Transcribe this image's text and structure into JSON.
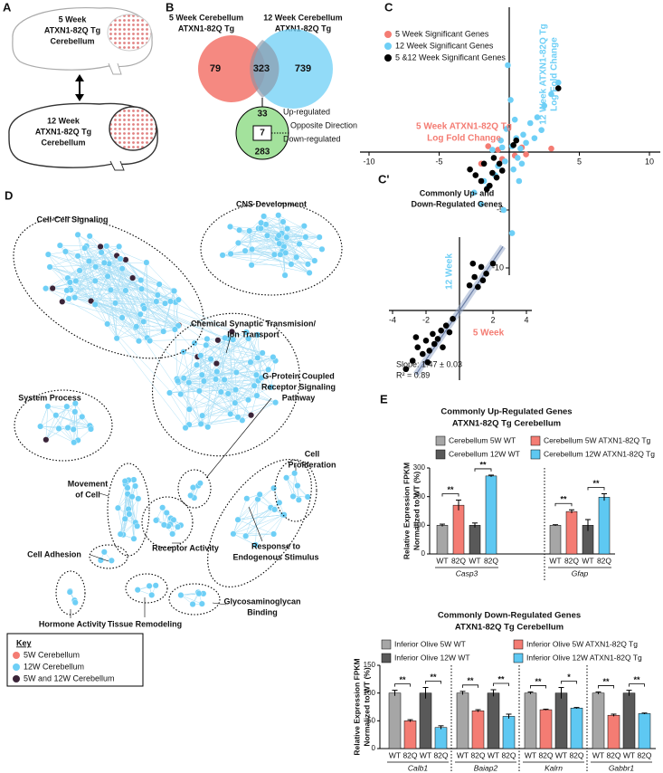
{
  "panel_a": {
    "label": "A",
    "top_brain": [
      "5 Week",
      "ATXN1-82Q Tg",
      "Cerebellum"
    ],
    "bottom_brain": [
      "12 Week",
      "ATXN1-82Q Tg",
      "Cerebellum"
    ]
  },
  "panel_b": {
    "label": "B",
    "left_set": [
      "5 Week Cerebellum",
      "ATXN1-82Q Tg"
    ],
    "right_set": [
      "12 Week Cerebellum",
      "ATXN1-82Q Tg"
    ],
    "left_only": 79,
    "overlap": 323,
    "right_only": 739,
    "overlap_split": {
      "up": 33,
      "opposite": 7,
      "down": 283
    },
    "split_labels": [
      "Up-regulated",
      "Opposite Direction",
      "Down-regulated"
    ]
  },
  "panel_d": {
    "label": "D",
    "clusters": [
      {
        "lines": [
          "Cell-Cell Signaling"
        ]
      },
      {
        "lines": [
          "CNS Development"
        ]
      },
      {
        "lines": [
          "Chemical Synaptic Transmision/",
          "Ion Transport"
        ]
      },
      {
        "lines": [
          "System Process"
        ]
      },
      {
        "lines": [
          "G-Protein Coupled",
          "Receptor Signaling",
          "Pathway"
        ]
      },
      {
        "lines": [
          "Cell",
          "Proliferation"
        ]
      },
      {
        "lines": [
          "Movement",
          "of Cell"
        ]
      },
      {
        "lines": [
          "Receptor Activity"
        ]
      },
      {
        "lines": [
          "Response to",
          "Endogenous Stimulus"
        ]
      },
      {
        "lines": [
          "Cell Adhesion"
        ]
      },
      {
        "lines": [
          "Hormone Activity"
        ]
      },
      {
        "lines": [
          "Tissue Remodeling"
        ]
      },
      {
        "lines": [
          "Glycosaminoglycan",
          "Binding"
        ]
      }
    ],
    "key": {
      "title": "Key",
      "items": [
        {
          "name": "5W Cerebellum",
          "color": "#f47c73"
        },
        {
          "name": "12W Cerebellum",
          "color": "#6ecff6"
        },
        {
          "name": "5W and 12W Cerebellum",
          "color": "#3a2438"
        }
      ]
    }
  },
  "chart_data": [
    {
      "type": "scatter",
      "label": "C",
      "xlim": [
        -10,
        10
      ],
      "ylim": [
        -10,
        10
      ],
      "xticks": [
        -10,
        -5,
        5,
        10
      ],
      "yticks": [
        -10,
        -5
      ],
      "x_label": [
        "5 Week ATXN1-82Q Tg",
        "Log Fold Change"
      ],
      "y_label": [
        "12 Week ATXN1-82Q Tg",
        "Log Fold Change"
      ],
      "series": [
        {
          "name": "5 Week Significant Genes",
          "color": "#f47c73",
          "x": [
            -1.5,
            -0.8,
            0.4,
            3.0,
            -2.0,
            1.2,
            -0.5,
            0.9
          ],
          "y": [
            0.5,
            0.2,
            -0.3,
            0.3,
            -1.0,
            -0.2,
            -0.6,
            0.4
          ]
        },
        {
          "name": "12 Week Significant Genes",
          "color": "#6ecff6",
          "x": [
            0.2,
            0.5,
            -0.3,
            1.0,
            0.8,
            -0.5,
            1.5,
            2.0,
            -1.0,
            -1.5,
            0.3,
            -0.2,
            0.6,
            -0.8,
            1.2,
            2.5,
            3.0,
            -2.0,
            0.1,
            -0.4,
            3.5,
            -0.6,
            0.9,
            -1.8,
            1.8,
            0.4,
            -1.2,
            -2.5,
            0.7,
            2.3,
            -0.1,
            0.2
          ],
          "y": [
            0.5,
            1.2,
            -0.8,
            1.5,
            0.3,
            0.4,
            2.5,
            3.0,
            -2.0,
            -3.0,
            -1.5,
            2.0,
            -0.5,
            -1.2,
            0.8,
            4.0,
            5.0,
            -4.5,
            4.5,
            -5.0,
            6.0,
            1.0,
            -1.0,
            -2.5,
            1.2,
            2.8,
            0.2,
            -3.5,
            -2.5,
            1.9,
            7.5,
            -7.0
          ]
        },
        {
          "name": "5 &12 Week Significant Genes",
          "color": "#000000",
          "x": [
            -1.2,
            -2.0,
            -0.7,
            0.5,
            -1.6,
            3.5,
            -0.9,
            -2.4,
            -1.1,
            0.3,
            -1.8,
            -0.5,
            -2.8,
            -1.4
          ],
          "y": [
            -1.8,
            -2.5,
            -1.0,
            1.0,
            -3.2,
            5.5,
            -2.2,
            -2.0,
            -0.5,
            0.6,
            -1.0,
            -1.6,
            -1.5,
            -2.9
          ]
        }
      ]
    },
    {
      "type": "scatter",
      "label": "C'",
      "title": [
        "Commonly Up- and",
        "Down-Regulated Genes"
      ],
      "xlim": [
        -4,
        4
      ],
      "ylim": [
        -4,
        4
      ],
      "xticks": [
        -4,
        -2,
        2,
        4
      ],
      "x_label": "5 Week",
      "y_label": "12 Week",
      "fit_slope": 1.47,
      "fit_text": [
        "Slope: 1.47 ± 0.03",
        "R² = 0.89"
      ],
      "series": [
        {
          "color": "#000000",
          "x": [
            -3.2,
            -2.8,
            -2.5,
            -2.2,
            -2.0,
            -1.8,
            -1.6,
            -1.5,
            -1.3,
            -1.1,
            -1.0,
            -0.8,
            -0.6,
            -0.4,
            -2.6,
            -1.9,
            0.6,
            0.9,
            1.1,
            1.3,
            1.6,
            2.0,
            0.8,
            1.4
          ],
          "y": [
            -3.5,
            -3.0,
            -2.2,
            -2.6,
            -1.8,
            -2.4,
            -1.4,
            -2.0,
            -1.7,
            -1.2,
            -2.2,
            -0.9,
            -1.3,
            -0.5,
            -1.6,
            -3.1,
            1.5,
            2.0,
            1.4,
            2.6,
            2.2,
            2.8,
            2.8,
            1.8
          ]
        }
      ]
    },
    {
      "type": "bar",
      "label": "E",
      "title": [
        "Commonly Up-Regulated Genes",
        "ATXN1-82Q Tg Cerebellum"
      ],
      "y_label": [
        "Relative Expression FPKM",
        "Normalized to WT (%)"
      ],
      "ylim": [
        0,
        300
      ],
      "yticks": [
        0,
        100,
        200,
        300
      ],
      "categories": [
        "Casp3",
        "Gfap"
      ],
      "bar_labels": [
        "WT",
        "82Q",
        "WT",
        "82Q"
      ],
      "series": [
        {
          "name": "Cerebellum 5W WT",
          "color": "#a6a6a6",
          "values": [
            100,
            100
          ],
          "errors": [
            4,
            2
          ]
        },
        {
          "name": "Cerebellum 5W ATXN1-82Q Tg",
          "color": "#f47c73",
          "values": [
            170,
            148
          ],
          "errors": [
            18,
            6
          ]
        },
        {
          "name": "Cerebellum 12W WT",
          "color": "#595959",
          "values": [
            100,
            100
          ],
          "errors": [
            8,
            20
          ]
        },
        {
          "name": "Cerebellum 12W ATXN1-82Q Tg",
          "color": "#5ec8f2",
          "values": [
            272,
            198
          ],
          "errors": [
            3,
            12
          ]
        }
      ],
      "significance": [
        [
          "**",
          "**"
        ],
        [
          "**",
          "**"
        ]
      ]
    },
    {
      "type": "bar",
      "title": [
        "Commonly Down-Regulated Genes",
        "ATXN1-82Q Tg Cerebellum"
      ],
      "y_label": [
        "Relative Expression FPKM",
        "Normalized to WT (%)"
      ],
      "ylim": [
        0,
        150
      ],
      "yticks": [
        0,
        50,
        100,
        150
      ],
      "categories": [
        "Calb1",
        "Baiap2",
        "Kalrn",
        "Gabbr1"
      ],
      "bar_labels": [
        "WT",
        "82Q",
        "WT",
        "82Q"
      ],
      "series": [
        {
          "name": "Inferior Olive 5W WT",
          "color": "#a6a6a6",
          "values": [
            100,
            100,
            100,
            100
          ],
          "errors": [
            5,
            3,
            2,
            2
          ]
        },
        {
          "name": "Inferior Olive 5W ATXN1-82Q Tg",
          "color": "#f47c73",
          "values": [
            50,
            68,
            70,
            60
          ],
          "errors": [
            2,
            2,
            1,
            2
          ]
        },
        {
          "name": "Inferior Olive 12W WT",
          "color": "#595959",
          "values": [
            100,
            100,
            100,
            100
          ],
          "errors": [
            10,
            6,
            10,
            5
          ]
        },
        {
          "name": "Inferior Olive 12W ATXN1-82Q Tg",
          "color": "#5ec8f2",
          "values": [
            38,
            58,
            73,
            63
          ],
          "errors": [
            3,
            4,
            1,
            1
          ]
        }
      ],
      "significance": [
        [
          "**",
          "**"
        ],
        [
          "**",
          "**"
        ],
        [
          "**",
          "*"
        ],
        [
          "**",
          "**"
        ]
      ]
    }
  ]
}
